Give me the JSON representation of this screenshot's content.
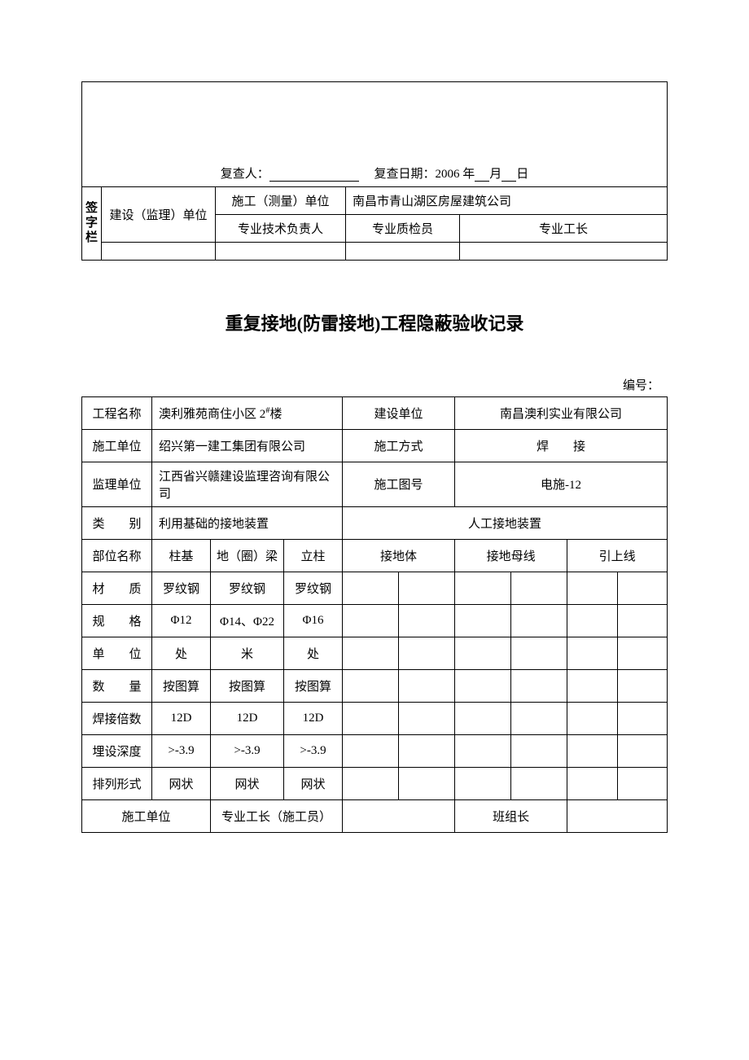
{
  "top": {
    "recheck_person_label": "复查人：",
    "recheck_date_label": "复查日期：",
    "recheck_year": "2006 年",
    "recheck_month_label": "月",
    "recheck_day_label": "日"
  },
  "signature": {
    "vert_label": "签字栏",
    "construction_supervision_unit": "建设（监理）单位",
    "construction_measurement_unit_label": "施工（测量）单位",
    "construction_measurement_unit_value": "南昌市青山湖区房屋建筑公司",
    "prof_tech_leader": "专业技术负责人",
    "prof_quality_inspector": "专业质检员",
    "prof_foreman": "专业工长"
  },
  "title": "重复接地(防雷接地)工程隐蔽验收记录",
  "number_label": "编号：",
  "main": {
    "project_name_label": "工程名称",
    "project_name_value": "澳利雅苑商住小区 2#楼",
    "build_unit_label": "建设单位",
    "build_unit_value": "南昌澳利实业有限公司",
    "construction_unit_label": "施工单位",
    "construction_unit_value": "绍兴第一建工集团有限公司",
    "construction_method_label": "施工方式",
    "construction_method_value": "焊　　接",
    "supervision_unit_label": "监理单位",
    "supervision_unit_value": "江西省兴赣建设监理咨询有限公司",
    "drawing_no_label": "施工图号",
    "drawing_no_value": "电施-12",
    "category_label": "类　　别",
    "category_left": "利用基础的接地装置",
    "category_right": "人工接地装置",
    "part_name_label": "部位名称",
    "headers_left": [
      "柱基",
      "地（圈）梁",
      "立柱"
    ],
    "headers_right": [
      "接地体",
      "接地母线",
      "引上线"
    ],
    "rows": [
      {
        "label": "材　　质",
        "vals": [
          "罗纹钢",
          "罗纹钢",
          "罗纹钢",
          "",
          "",
          "",
          "",
          "",
          ""
        ]
      },
      {
        "label": "规　　格",
        "vals": [
          "Φ12",
          "Φ14、Φ22",
          "Φ16",
          "",
          "",
          "",
          "",
          "",
          ""
        ]
      },
      {
        "label": "单　　位",
        "vals": [
          "处",
          "米",
          "处",
          "",
          "",
          "",
          "",
          "",
          ""
        ]
      },
      {
        "label": "数　　量",
        "vals": [
          "按图算",
          "按图算",
          "按图算",
          "",
          "",
          "",
          "",
          "",
          ""
        ]
      },
      {
        "label": "焊接倍数",
        "vals": [
          "12D",
          "12D",
          "12D",
          "",
          "",
          "",
          "",
          "",
          ""
        ]
      },
      {
        "label": "埋设深度",
        "vals": [
          ">-3.9",
          ">-3.9",
          ">-3.9",
          "",
          "",
          "",
          "",
          "",
          ""
        ]
      },
      {
        "label": "排列形式",
        "vals": [
          "网状",
          "网状",
          "网状",
          "",
          "",
          "",
          "",
          "",
          ""
        ]
      }
    ],
    "footer_construction_unit": "施工单位",
    "footer_prof_foreman": "专业工长（施工员）",
    "footer_team_leader": "班组长"
  }
}
